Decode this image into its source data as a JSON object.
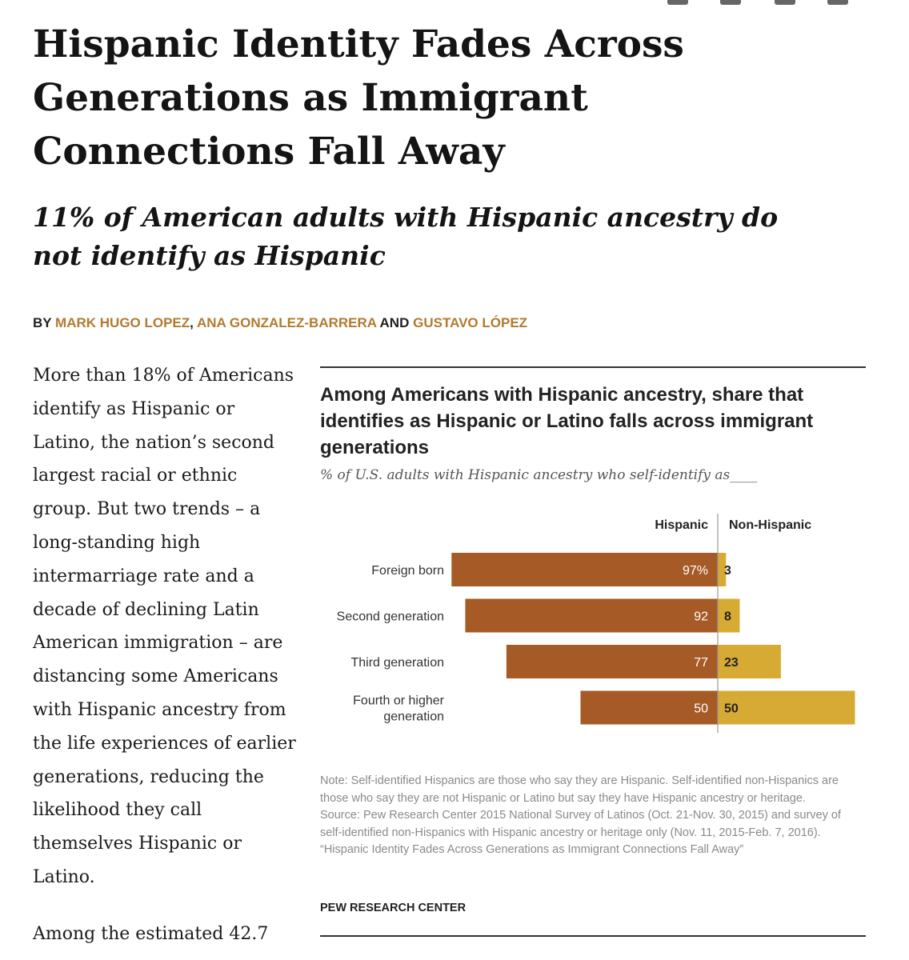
{
  "article": {
    "headline": "Hispanic Identity Fades Across Generations as Immigrant Connections Fall Away",
    "subhead": "11% of American adults with Hispanic ancestry do not identify as Hispanic",
    "byline": {
      "by": "BY",
      "authors": [
        "MARK HUGO LOPEZ",
        "ANA GONZALEZ-BARRERA",
        "GUSTAVO LÓPEZ"
      ],
      "separator": ",",
      "conjunction": "AND"
    },
    "body_paragraphs": [
      "More than 18% of Americans identify as Hispanic or Latino, the nation’s second largest racial or ethnic group. But two trends – a long-standing high intermarriage rate and a decade of declining Latin American immigration – are distancing some Americans with Hispanic ancestry from the life experiences of earlier generations, reducing the likelihood they call themselves Hispanic or Latino.",
      "Among the estimated 42.7"
    ]
  },
  "chart_data": {
    "type": "bar",
    "orientation": "horizontal-diverging",
    "title": "Among Americans with Hispanic ancestry, share that identifies as Hispanic or Latino falls across immigrant generations",
    "subtitle": "% of U.S. adults with Hispanic ancestry who self-identify as____",
    "categories": [
      "Foreign born",
      "Second generation",
      "Third generation",
      "Fourth or higher generation"
    ],
    "category_lines": [
      [
        "Foreign born"
      ],
      [
        "Second generation"
      ],
      [
        "Third generation"
      ],
      [
        "Fourth or higher",
        "generation"
      ]
    ],
    "series": [
      {
        "name": "Hispanic",
        "values": [
          97,
          92,
          77,
          50
        ],
        "labels": [
          "97%",
          "92",
          "77",
          "50"
        ],
        "color": "#a65a26"
      },
      {
        "name": "Non-Hispanic",
        "values": [
          3,
          8,
          23,
          50
        ],
        "labels": [
          "3",
          "8",
          "23",
          "50"
        ],
        "color": "#d7ab33"
      }
    ],
    "axis_max": 100,
    "notes": [
      "Note: Self-identified Hispanics are those who say they are Hispanic. Self-identified non-Hispanics are those who say they are not Hispanic or Latino but say they have Hispanic ancestry or heritage.",
      "Source: Pew Research Center 2015 National Survey of Latinos (Oct. 21-Nov. 30, 2015) and survey of self-identified non-Hispanics with Hispanic ancestry or heritage only (Nov. 11, 2015-Feb. 7, 2016).",
      "“Hispanic Identity Fades Across Generations as Immigrant Connections Fall Away”"
    ],
    "credit": "PEW RESEARCH CENTER"
  }
}
